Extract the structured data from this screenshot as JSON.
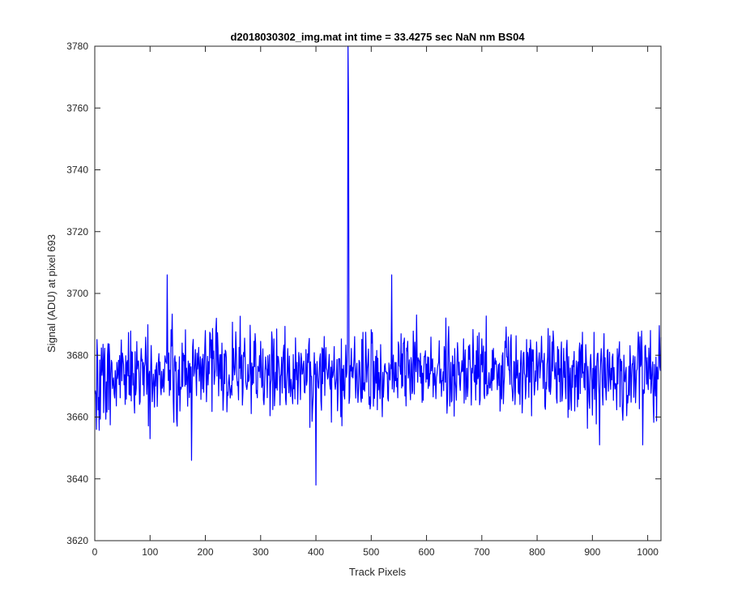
{
  "chart_data": {
    "type": "line",
    "title": "d2018030302_img.mat int time = 33.4275 sec  NaN nm BS04",
    "xlabel": "Track Pixels",
    "ylabel": "Signal (ADU) at pixel 693",
    "xlim": [
      0,
      1024
    ],
    "ylim": [
      3620,
      3780
    ],
    "x_ticks": [
      0,
      100,
      200,
      300,
      400,
      500,
      600,
      700,
      800,
      900,
      1000
    ],
    "y_ticks": [
      3620,
      3640,
      3660,
      3680,
      3700,
      3720,
      3740,
      3760,
      3780
    ],
    "grid": false,
    "series_color": "#0000ff",
    "series": [
      {
        "name": "",
        "x_start": 1,
        "x_step": 1,
        "baseline": 3674,
        "noise_amplitude": 9,
        "n_points": 1024,
        "notable_points": [
          {
            "x": 3,
            "y": 3656
          },
          {
            "x": 100,
            "y": 3653
          },
          {
            "x": 131,
            "y": 3706
          },
          {
            "x": 175,
            "y": 3646
          },
          {
            "x": 400,
            "y": 3638
          },
          {
            "x": 458,
            "y": 3780
          },
          {
            "x": 459,
            "y": 3760
          },
          {
            "x": 537,
            "y": 3706
          },
          {
            "x": 913,
            "y": 3651
          },
          {
            "x": 991,
            "y": 3651
          }
        ]
      }
    ]
  }
}
